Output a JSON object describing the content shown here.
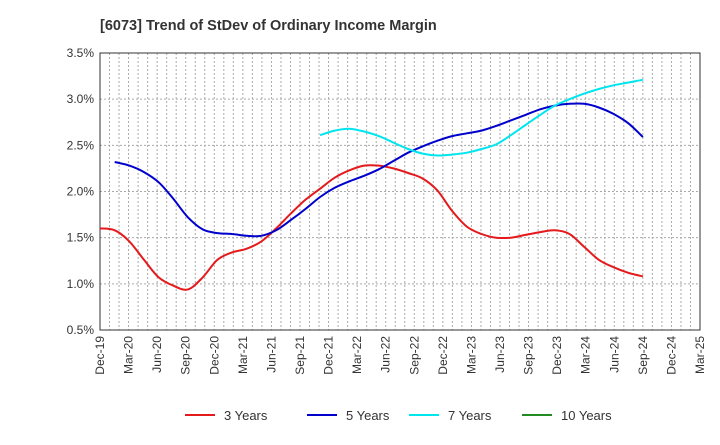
{
  "chart_data": {
    "type": "line",
    "title": "[6073]  Trend of StDev of Ordinary Income Margin",
    "xlabel": "",
    "ylabel": "",
    "x_tick_labels": [
      "Dec-19",
      "Mar-20",
      "Jun-20",
      "Sep-20",
      "Dec-20",
      "Mar-21",
      "Jun-21",
      "Sep-21",
      "Dec-21",
      "Mar-22",
      "Jun-22",
      "Sep-22",
      "Dec-22",
      "Mar-23",
      "Jun-23",
      "Sep-23",
      "Dec-23",
      "Mar-24",
      "Jun-24",
      "Sep-24",
      "Dec-24",
      "Mar-25"
    ],
    "y_tick_labels": [
      "0.5%",
      "1.0%",
      "1.5%",
      "2.0%",
      "2.5%",
      "3.0%",
      "3.5%"
    ],
    "ylim": [
      0.5,
      3.5
    ],
    "grid": true,
    "legend_position": "bottom",
    "series": [
      {
        "name": "3 Years",
        "color": "#e41a1c",
        "values": [
          1.6,
          1.58,
          1.46,
          1.26,
          1.07,
          0.98,
          0.94,
          1.07,
          1.26,
          1.34,
          1.38,
          1.46,
          1.6,
          1.76,
          1.91,
          2.03,
          2.15,
          2.23,
          2.28,
          2.28,
          2.25,
          2.2,
          2.14,
          2.01,
          1.79,
          1.62,
          1.54,
          1.5,
          1.5,
          1.53,
          1.56,
          1.58,
          1.54,
          1.4,
          1.26,
          1.18,
          1.12,
          1.08
        ]
      },
      {
        "name": "5 Years",
        "color": "#0000cc",
        "values": [
          null,
          2.32,
          2.28,
          2.21,
          2.1,
          1.92,
          1.72,
          1.59,
          1.55,
          1.54,
          1.52,
          1.52,
          1.58,
          1.69,
          1.81,
          1.94,
          2.04,
          2.11,
          2.17,
          2.24,
          2.33,
          2.42,
          2.49,
          2.55,
          2.6,
          2.63,
          2.66,
          2.71,
          2.77,
          2.83,
          2.89,
          2.93,
          2.95,
          2.95,
          2.91,
          2.84,
          2.74,
          2.59
        ]
      },
      {
        "name": "7 Years",
        "color": "#00e5ee",
        "values": [
          null,
          null,
          null,
          null,
          null,
          null,
          null,
          null,
          null,
          null,
          null,
          null,
          null,
          null,
          null,
          2.61,
          2.66,
          2.68,
          2.65,
          2.6,
          2.53,
          2.46,
          2.41,
          2.39,
          2.4,
          2.42,
          2.46,
          2.51,
          2.61,
          2.72,
          2.83,
          2.93,
          3.0,
          3.06,
          3.11,
          3.15,
          3.18,
          3.21
        ]
      },
      {
        "name": "10 Years",
        "color": "#228b22",
        "values": []
      }
    ]
  }
}
